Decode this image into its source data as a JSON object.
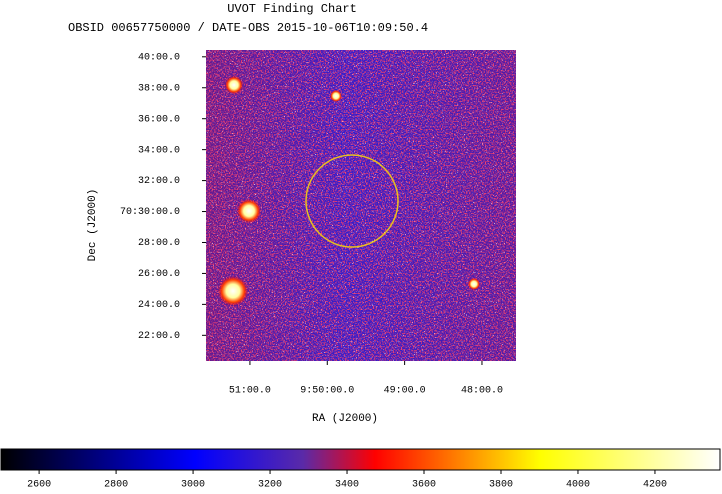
{
  "chart_data": {
    "type": "image",
    "title": "UVOT Finding Chart",
    "subtitle": "OBSID 00657750000 / DATE-OBS 2015-10-06T10:09:50.4",
    "x_label": "RA (J2000)",
    "y_label": "Dec (J2000)",
    "xlim": [
      147.892,
      146.89
    ],
    "xticks": [
      {
        "value": 147.75,
        "label": "51:00.0"
      },
      {
        "value": 147.5,
        "label": "9:50:00.0"
      },
      {
        "value": 147.25,
        "label": "49:00.0"
      },
      {
        "value": 147.0,
        "label": "48:00.0"
      }
    ],
    "ylim": [
      70.339,
      70.674
    ],
    "yticks": [
      {
        "value": 70.66667,
        "label": "40:00.0"
      },
      {
        "value": 70.63333,
        "label": "38:00.0"
      },
      {
        "value": 70.6,
        "label": "36:00.0"
      },
      {
        "value": 70.56667,
        "label": "34:00.0"
      },
      {
        "value": 70.53333,
        "label": "32:00.0"
      },
      {
        "value": 70.5,
        "label": "70:30:00.0"
      },
      {
        "value": 70.46667,
        "label": "28:00.0"
      },
      {
        "value": 70.43333,
        "label": "26:00.0"
      },
      {
        "value": 70.4,
        "label": "24:00.0"
      },
      {
        "value": 70.36667,
        "label": "22:00.0"
      }
    ],
    "colorbar": {
      "lim": [
        2501,
        4369
      ],
      "ticks": [
        2600,
        2800,
        3000,
        3200,
        3400,
        3600,
        3800,
        4000,
        4200
      ]
    }
  }
}
